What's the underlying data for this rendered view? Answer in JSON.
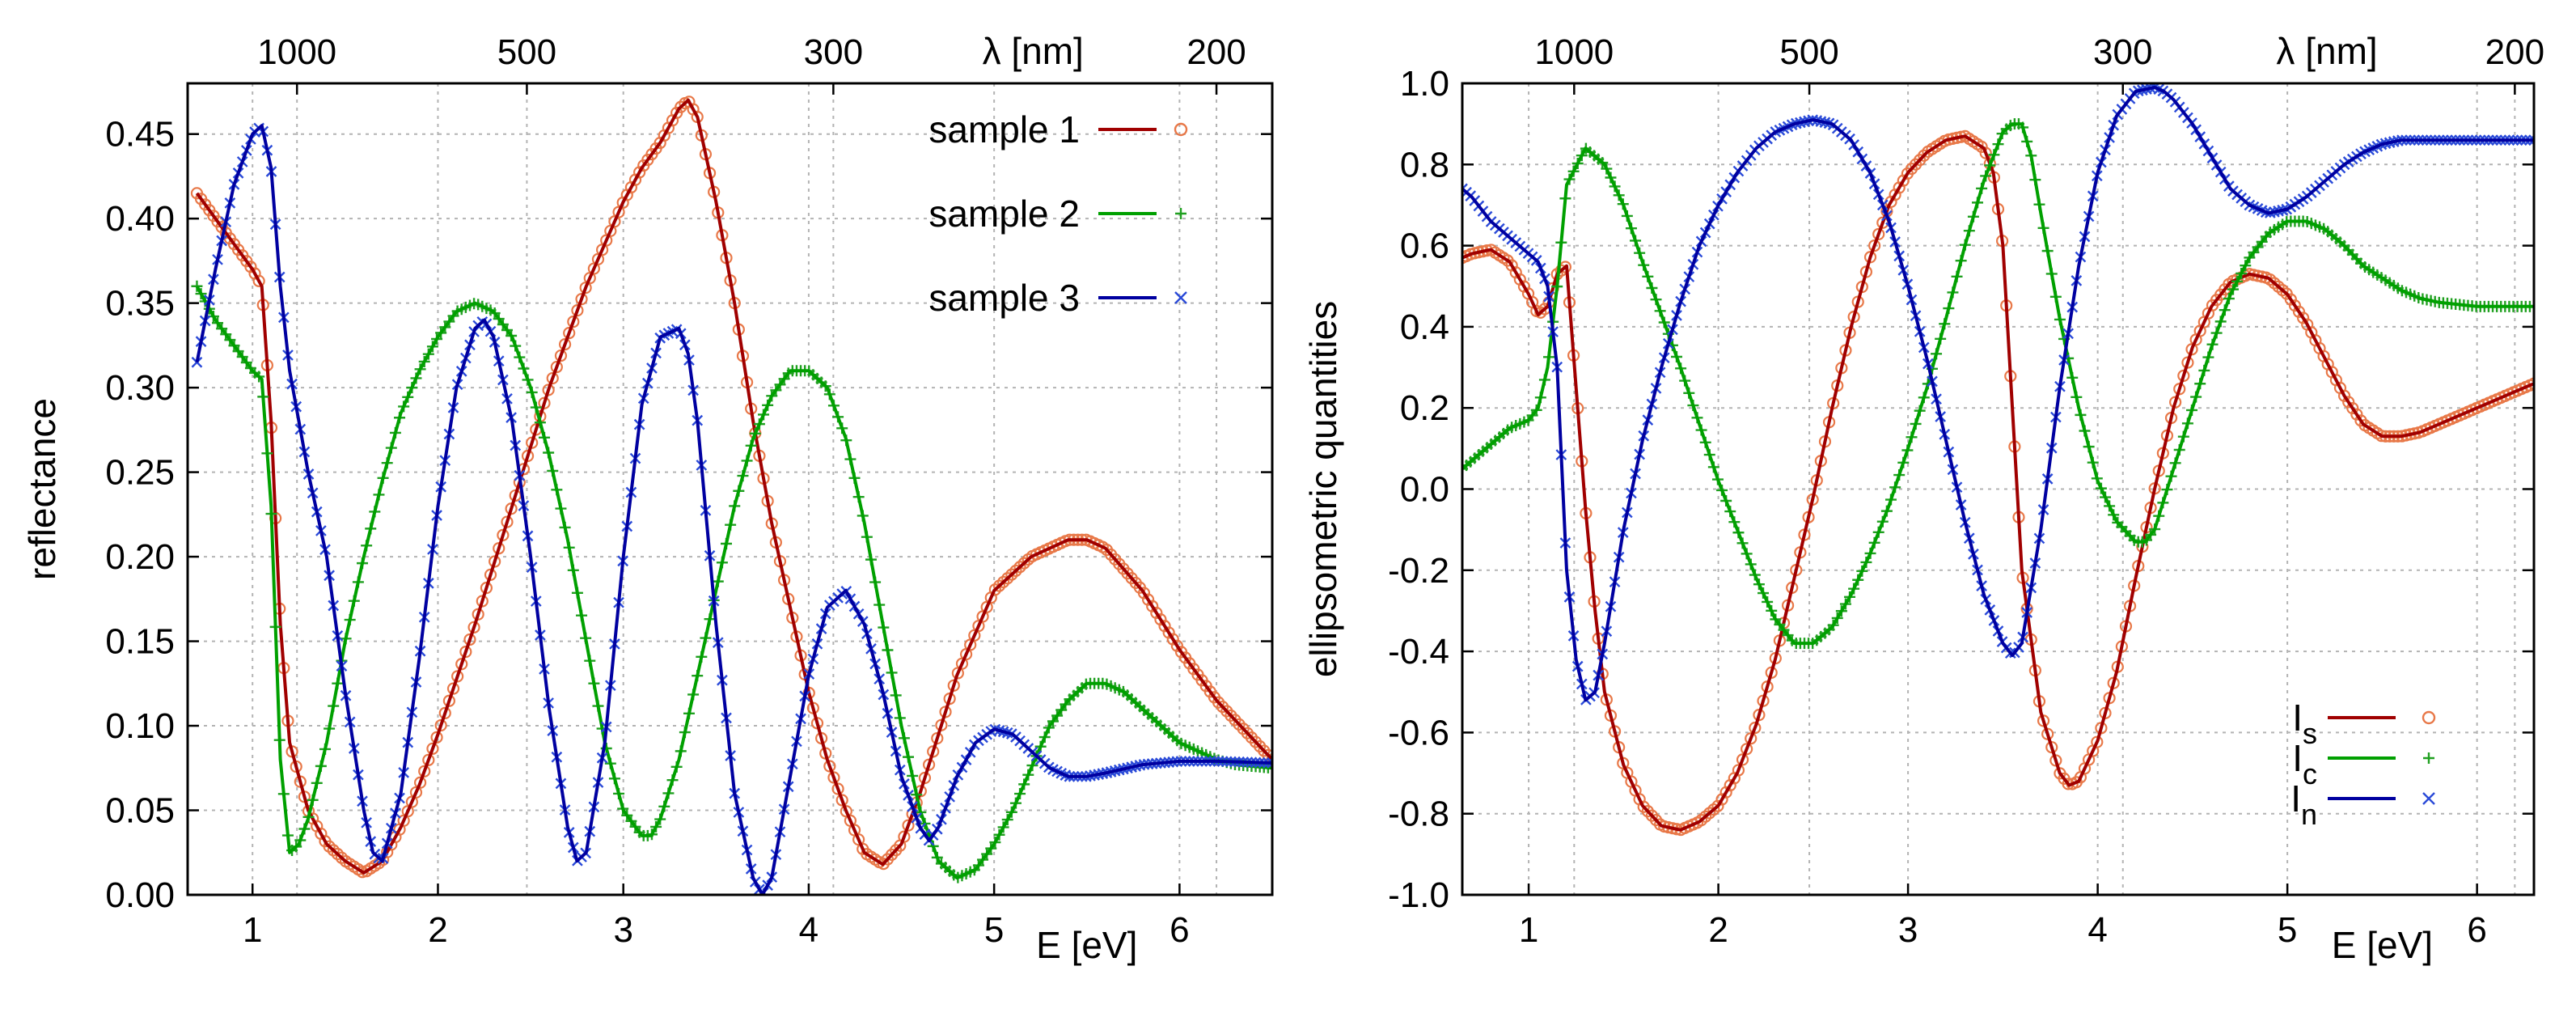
{
  "chart_data": [
    {
      "type": "line",
      "ylabel": "reflectance",
      "xlabel": "E [eV]",
      "x2label": "λ [nm]",
      "xlim": [
        0.65,
        6.5
      ],
      "ylim": [
        0.0,
        0.48
      ],
      "xticks": [
        1,
        2,
        3,
        4,
        5,
        6
      ],
      "xtick_labels": [
        "1",
        "2",
        "3",
        "4",
        "5",
        "6"
      ],
      "yticks": [
        0.0,
        0.05,
        0.1,
        0.15,
        0.2,
        0.25,
        0.3,
        0.35,
        0.4,
        0.45
      ],
      "ytick_labels": [
        "0.00",
        "0.05",
        "0.10",
        "0.15",
        "0.20",
        "0.25",
        "0.30",
        "0.35",
        "0.40",
        "0.45"
      ],
      "x2ticks_nm": [
        1000,
        500,
        300,
        200
      ],
      "x2tick_labels": [
        "1000",
        "500",
        "300",
        "200"
      ],
      "grid": true,
      "legend_position": "top-right",
      "series": [
        {
          "name": "sample 1",
          "line_color": "#a00000",
          "marker_color": "#e87848",
          "marker": "circle",
          "x": [
            0.7,
            0.8,
            0.9,
            1.0,
            1.05,
            1.1,
            1.15,
            1.2,
            1.3,
            1.4,
            1.5,
            1.6,
            1.7,
            1.8,
            1.9,
            2.0,
            2.2,
            2.4,
            2.6,
            2.8,
            3.0,
            3.1,
            3.2,
            3.3,
            3.35,
            3.4,
            3.5,
            3.6,
            3.7,
            3.8,
            3.9,
            4.0,
            4.1,
            4.2,
            4.3,
            4.4,
            4.5,
            4.6,
            4.8,
            5.0,
            5.2,
            5.4,
            5.5,
            5.6,
            5.8,
            6.0,
            6.2,
            6.5
          ],
          "y": [
            0.415,
            0.4,
            0.385,
            0.37,
            0.36,
            0.28,
            0.16,
            0.09,
            0.05,
            0.03,
            0.02,
            0.013,
            0.02,
            0.04,
            0.065,
            0.095,
            0.16,
            0.23,
            0.3,
            0.36,
            0.41,
            0.43,
            0.445,
            0.465,
            0.47,
            0.46,
            0.41,
            0.35,
            0.28,
            0.22,
            0.17,
            0.12,
            0.08,
            0.05,
            0.025,
            0.018,
            0.03,
            0.06,
            0.13,
            0.18,
            0.2,
            0.21,
            0.21,
            0.205,
            0.18,
            0.145,
            0.115,
            0.08
          ]
        },
        {
          "name": "sample 2",
          "line_color": "#00a000",
          "marker_color": "#20a020",
          "marker": "plus",
          "x": [
            0.7,
            0.8,
            0.9,
            1.0,
            1.05,
            1.1,
            1.15,
            1.2,
            1.25,
            1.3,
            1.4,
            1.5,
            1.6,
            1.7,
            1.8,
            1.9,
            2.0,
            2.1,
            2.2,
            2.3,
            2.4,
            2.5,
            2.6,
            2.7,
            2.8,
            2.9,
            3.0,
            3.1,
            3.15,
            3.2,
            3.3,
            3.4,
            3.5,
            3.6,
            3.7,
            3.8,
            3.9,
            4.0,
            4.1,
            4.2,
            4.3,
            4.4,
            4.5,
            4.6,
            4.7,
            4.8,
            4.9,
            5.0,
            5.1,
            5.2,
            5.3,
            5.4,
            5.5,
            5.6,
            5.7,
            5.8,
            5.9,
            6.0,
            6.1,
            6.2,
            6.3,
            6.4,
            6.5
          ],
          "y": [
            0.36,
            0.34,
            0.325,
            0.31,
            0.305,
            0.23,
            0.08,
            0.025,
            0.03,
            0.045,
            0.09,
            0.15,
            0.2,
            0.245,
            0.285,
            0.31,
            0.33,
            0.345,
            0.35,
            0.345,
            0.33,
            0.3,
            0.26,
            0.21,
            0.15,
            0.09,
            0.05,
            0.035,
            0.035,
            0.045,
            0.08,
            0.13,
            0.18,
            0.23,
            0.27,
            0.295,
            0.31,
            0.31,
            0.3,
            0.27,
            0.22,
            0.16,
            0.1,
            0.05,
            0.02,
            0.01,
            0.015,
            0.03,
            0.05,
            0.075,
            0.1,
            0.115,
            0.125,
            0.125,
            0.12,
            0.11,
            0.1,
            0.09,
            0.085,
            0.08,
            0.077,
            0.076,
            0.075
          ]
        },
        {
          "name": "sample 3",
          "line_color": "#0000a0",
          "marker_color": "#2a4ad8",
          "marker": "cross",
          "x": [
            0.7,
            0.8,
            0.9,
            1.0,
            1.05,
            1.1,
            1.15,
            1.2,
            1.3,
            1.4,
            1.5,
            1.6,
            1.65,
            1.7,
            1.8,
            1.9,
            2.0,
            2.1,
            2.2,
            2.25,
            2.3,
            2.4,
            2.5,
            2.6,
            2.7,
            2.75,
            2.8,
            2.9,
            3.0,
            3.1,
            3.2,
            3.3,
            3.35,
            3.4,
            3.5,
            3.6,
            3.7,
            3.75,
            3.8,
            3.9,
            4.0,
            4.1,
            4.2,
            4.3,
            4.4,
            4.5,
            4.6,
            4.65,
            4.7,
            4.8,
            4.9,
            5.0,
            5.1,
            5.2,
            5.3,
            5.4,
            5.5,
            5.6,
            5.8,
            6.0,
            6.2,
            6.5
          ],
          "y": [
            0.315,
            0.37,
            0.42,
            0.45,
            0.455,
            0.43,
            0.36,
            0.31,
            0.25,
            0.2,
            0.12,
            0.05,
            0.025,
            0.02,
            0.06,
            0.14,
            0.23,
            0.3,
            0.335,
            0.34,
            0.33,
            0.28,
            0.2,
            0.11,
            0.04,
            0.02,
            0.025,
            0.09,
            0.2,
            0.29,
            0.33,
            0.335,
            0.32,
            0.28,
            0.16,
            0.06,
            0.01,
            0.0,
            0.01,
            0.07,
            0.13,
            0.17,
            0.18,
            0.16,
            0.12,
            0.07,
            0.04,
            0.032,
            0.04,
            0.07,
            0.09,
            0.098,
            0.095,
            0.085,
            0.075,
            0.07,
            0.07,
            0.072,
            0.077,
            0.079,
            0.079,
            0.078
          ]
        }
      ]
    },
    {
      "type": "line",
      "ylabel": "ellipsometric quantities",
      "xlabel": "E [eV]",
      "x2label": "λ [nm]",
      "xlim": [
        0.65,
        6.3
      ],
      "ylim": [
        -1.0,
        1.0
      ],
      "xticks": [
        1,
        2,
        3,
        4,
        5,
        6
      ],
      "xtick_labels": [
        "1",
        "2",
        "3",
        "4",
        "5",
        "6"
      ],
      "yticks": [
        -1.0,
        -0.8,
        -0.6,
        -0.4,
        -0.2,
        0.0,
        0.2,
        0.4,
        0.6,
        0.8,
        1.0
      ],
      "ytick_labels": [
        "-1.0",
        "-0.8",
        "-0.6",
        "-0.4",
        "-0.2",
        "0.0",
        "0.2",
        "0.4",
        "0.6",
        "0.8",
        "1.0"
      ],
      "x2ticks_nm": [
        1000,
        500,
        300,
        200
      ],
      "x2tick_labels": [
        "1000",
        "500",
        "300",
        "200"
      ],
      "grid": true,
      "legend_position": "bottom-right",
      "series": [
        {
          "name": "I",
          "subscript": "s",
          "line_color": "#a00000",
          "marker_color": "#e87848",
          "marker": "circle",
          "x": [
            0.65,
            0.7,
            0.8,
            0.9,
            1.0,
            1.05,
            1.1,
            1.15,
            1.2,
            1.25,
            1.3,
            1.35,
            1.4,
            1.5,
            1.6,
            1.7,
            1.8,
            1.9,
            2.0,
            2.1,
            2.2,
            2.3,
            2.4,
            2.5,
            2.6,
            2.7,
            2.8,
            2.9,
            3.0,
            3.1,
            3.2,
            3.3,
            3.4,
            3.45,
            3.5,
            3.55,
            3.6,
            3.7,
            3.8,
            3.85,
            3.9,
            4.0,
            4.1,
            4.2,
            4.3,
            4.4,
            4.5,
            4.6,
            4.7,
            4.8,
            4.9,
            5.0,
            5.1,
            5.2,
            5.3,
            5.4,
            5.5,
            5.6,
            5.7,
            5.8,
            5.9,
            6.0,
            6.1,
            6.2,
            6.3
          ],
          "y": [
            0.57,
            0.58,
            0.59,
            0.56,
            0.48,
            0.43,
            0.45,
            0.53,
            0.55,
            0.25,
            -0.05,
            -0.3,
            -0.5,
            -0.68,
            -0.78,
            -0.83,
            -0.84,
            -0.82,
            -0.78,
            -0.7,
            -0.58,
            -0.42,
            -0.22,
            -0.02,
            0.2,
            0.4,
            0.57,
            0.7,
            0.78,
            0.83,
            0.86,
            0.87,
            0.84,
            0.78,
            0.6,
            0.2,
            -0.2,
            -0.55,
            -0.7,
            -0.73,
            -0.72,
            -0.62,
            -0.45,
            -0.22,
            0.0,
            0.2,
            0.35,
            0.45,
            0.51,
            0.53,
            0.52,
            0.48,
            0.41,
            0.32,
            0.23,
            0.16,
            0.13,
            0.13,
            0.14,
            0.16,
            0.18,
            0.2,
            0.22,
            0.24,
            0.26
          ]
        },
        {
          "name": "I",
          "subscript": "c",
          "line_color": "#00a000",
          "marker_color": "#20a020",
          "marker": "plus",
          "x": [
            0.65,
            0.7,
            0.8,
            0.9,
            1.0,
            1.05,
            1.1,
            1.15,
            1.2,
            1.3,
            1.4,
            1.5,
            1.6,
            1.7,
            1.8,
            1.9,
            2.0,
            2.1,
            2.2,
            2.3,
            2.4,
            2.5,
            2.6,
            2.7,
            2.8,
            2.9,
            3.0,
            3.1,
            3.2,
            3.3,
            3.4,
            3.5,
            3.55,
            3.6,
            3.65,
            3.7,
            3.8,
            3.9,
            4.0,
            4.1,
            4.2,
            4.25,
            4.3,
            4.4,
            4.5,
            4.6,
            4.7,
            4.8,
            4.9,
            5.0,
            5.1,
            5.2,
            5.3,
            5.4,
            5.5,
            5.6,
            5.7,
            5.8,
            5.9,
            6.0,
            6.1,
            6.2,
            6.3
          ],
          "y": [
            0.05,
            0.07,
            0.11,
            0.15,
            0.17,
            0.2,
            0.3,
            0.5,
            0.75,
            0.84,
            0.8,
            0.7,
            0.56,
            0.43,
            0.3,
            0.16,
            0.02,
            -0.1,
            -0.22,
            -0.32,
            -0.38,
            -0.38,
            -0.34,
            -0.26,
            -0.16,
            -0.04,
            0.1,
            0.25,
            0.42,
            0.6,
            0.76,
            0.88,
            0.9,
            0.9,
            0.82,
            0.68,
            0.42,
            0.2,
            0.02,
            -0.08,
            -0.13,
            -0.13,
            -0.1,
            0.05,
            0.2,
            0.35,
            0.48,
            0.57,
            0.63,
            0.66,
            0.66,
            0.64,
            0.6,
            0.55,
            0.52,
            0.49,
            0.47,
            0.46,
            0.455,
            0.45,
            0.45,
            0.45,
            0.45
          ]
        },
        {
          "name": "I",
          "subscript": "n",
          "line_color": "#0000a0",
          "marker_color": "#2a4ad8",
          "marker": "cross",
          "x": [
            0.65,
            0.7,
            0.8,
            0.9,
            1.0,
            1.05,
            1.1,
            1.15,
            1.2,
            1.25,
            1.3,
            1.35,
            1.4,
            1.5,
            1.6,
            1.7,
            1.8,
            1.9,
            2.0,
            2.1,
            2.2,
            2.3,
            2.4,
            2.5,
            2.6,
            2.7,
            2.8,
            2.9,
            3.0,
            3.1,
            3.2,
            3.3,
            3.4,
            3.5,
            3.55,
            3.6,
            3.7,
            3.8,
            3.9,
            4.0,
            4.1,
            4.2,
            4.3,
            4.35,
            4.4,
            4.5,
            4.6,
            4.7,
            4.8,
            4.9,
            5.0,
            5.1,
            5.2,
            5.3,
            5.4,
            5.5,
            5.6,
            5.7,
            5.8,
            5.9,
            6.0,
            6.1,
            6.2,
            6.3
          ],
          "y": [
            0.74,
            0.72,
            0.66,
            0.62,
            0.58,
            0.56,
            0.5,
            0.3,
            -0.2,
            -0.42,
            -0.52,
            -0.5,
            -0.38,
            -0.1,
            0.12,
            0.3,
            0.46,
            0.6,
            0.7,
            0.78,
            0.84,
            0.88,
            0.9,
            0.91,
            0.9,
            0.86,
            0.78,
            0.66,
            0.5,
            0.32,
            0.12,
            -0.08,
            -0.26,
            -0.38,
            -0.41,
            -0.38,
            -0.1,
            0.25,
            0.55,
            0.78,
            0.92,
            0.98,
            0.99,
            0.98,
            0.96,
            0.9,
            0.82,
            0.74,
            0.7,
            0.68,
            0.69,
            0.72,
            0.76,
            0.8,
            0.83,
            0.85,
            0.86,
            0.86,
            0.86,
            0.86,
            0.86,
            0.86,
            0.86,
            0.86
          ]
        }
      ]
    }
  ]
}
